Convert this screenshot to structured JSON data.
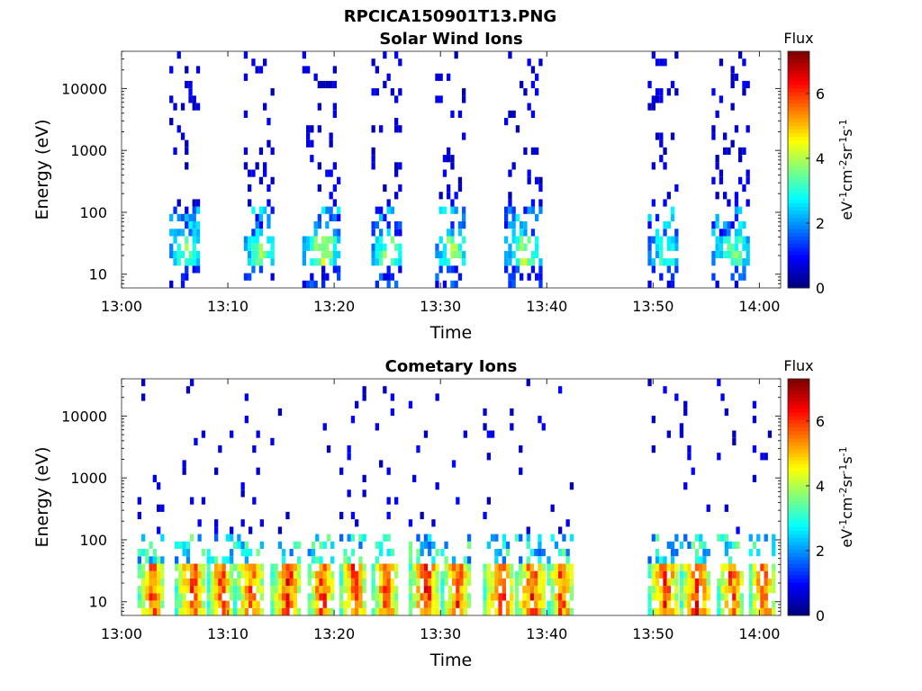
{
  "figure": {
    "title": "RPCICA150901T13.PNG"
  },
  "chart_data": [
    {
      "type": "heatmap",
      "title": "Solar Wind Ions",
      "xlabel": "Time",
      "ylabel": "Energy (eV)",
      "y_scale": "log",
      "ylim": [
        6,
        40000
      ],
      "xlim": [
        "13:00",
        "14:02"
      ],
      "x_ticks": [
        "13:00",
        "13:10",
        "13:20",
        "13:30",
        "13:40",
        "13:50",
        "14:00"
      ],
      "y_ticks": [
        "10",
        "100",
        "1000",
        "10000"
      ],
      "colorbar": {
        "title": "Flux",
        "label": "eV-1cm-2sr-1s-1",
        "range": [
          0,
          7.3
        ],
        "ticks": [
          "0",
          "2",
          "4",
          "6"
        ],
        "colormap": "jet"
      },
      "bursts": [
        {
          "start_min": 4.5,
          "end_min": 7.5,
          "peak_flux": 4.2
        },
        {
          "start_min": 11.5,
          "end_min": 14.5,
          "peak_flux": 4.4
        },
        {
          "start_min": 17.0,
          "end_min": 20.5,
          "peak_flux": 5.0
        },
        {
          "start_min": 23.5,
          "end_min": 26.5,
          "peak_flux": 4.6
        },
        {
          "start_min": 29.5,
          "end_min": 32.5,
          "peak_flux": 4.6
        },
        {
          "start_min": 36.0,
          "end_min": 39.5,
          "peak_flux": 4.6
        },
        {
          "start_min": 49.5,
          "end_min": 52.5,
          "peak_flux": 3.8
        },
        {
          "start_min": 55.5,
          "end_min": 59.0,
          "peak_flux": 4.4
        }
      ]
    },
    {
      "type": "heatmap",
      "title": "Cometary Ions",
      "xlabel": "Time",
      "ylabel": "Energy (eV)",
      "y_scale": "log",
      "ylim": [
        6,
        40000
      ],
      "xlim": [
        "13:00",
        "14:02"
      ],
      "x_ticks": [
        "13:00",
        "13:10",
        "13:20",
        "13:30",
        "13:40",
        "13:50",
        "14:00"
      ],
      "y_ticks": [
        "10",
        "100",
        "1000",
        "10000"
      ],
      "colorbar": {
        "title": "Flux",
        "label": "eV-1cm-2sr-1s-1",
        "range": [
          0,
          7.3
        ],
        "ticks": [
          "0",
          "2",
          "4",
          "6"
        ],
        "colormap": "jet"
      },
      "bursts": [
        {
          "start_min": 1.5,
          "end_min": 4.0,
          "peak_flux": 6.8
        },
        {
          "start_min": 5.0,
          "end_min": 8.0,
          "peak_flux": 6.8
        },
        {
          "start_min": 8.0,
          "end_min": 10.5,
          "peak_flux": 6.8
        },
        {
          "start_min": 10.5,
          "end_min": 13.5,
          "peak_flux": 6.5
        },
        {
          "start_min": 14.0,
          "end_min": 17.0,
          "peak_flux": 7.0
        },
        {
          "start_min": 17.5,
          "end_min": 20.0,
          "peak_flux": 7.0
        },
        {
          "start_min": 20.5,
          "end_min": 23.0,
          "peak_flux": 7.0
        },
        {
          "start_min": 23.5,
          "end_min": 26.0,
          "peak_flux": 6.8
        },
        {
          "start_min": 27.0,
          "end_min": 30.0,
          "peak_flux": 7.0
        },
        {
          "start_min": 30.0,
          "end_min": 33.0,
          "peak_flux": 6.8
        },
        {
          "start_min": 34.0,
          "end_min": 37.0,
          "peak_flux": 7.0
        },
        {
          "start_min": 37.0,
          "end_min": 40.0,
          "peak_flux": 6.8
        },
        {
          "start_min": 40.0,
          "end_min": 42.5,
          "peak_flux": 6.8
        },
        {
          "start_min": 49.5,
          "end_min": 52.5,
          "peak_flux": 6.8
        },
        {
          "start_min": 52.5,
          "end_min": 55.5,
          "peak_flux": 7.0
        },
        {
          "start_min": 56.0,
          "end_min": 58.5,
          "peak_flux": 6.8
        },
        {
          "start_min": 59.0,
          "end_min": 61.5,
          "peak_flux": 6.8
        }
      ]
    }
  ]
}
